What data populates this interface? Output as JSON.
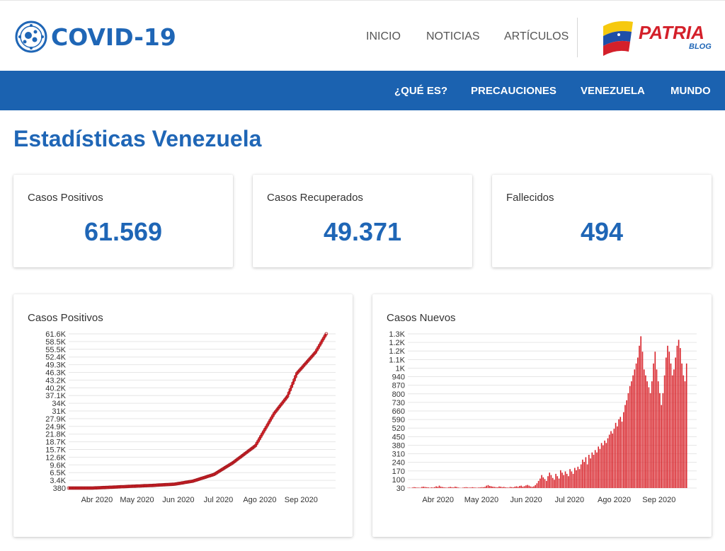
{
  "header": {
    "logo_text": "COVID-19",
    "nav": [
      "INICIO",
      "NOTICIAS",
      "ARTÍCULOS"
    ],
    "brand_word": "PATRIA",
    "brand_sub": "BLOG"
  },
  "subnav": [
    "¿QUÉ ES?",
    "PRECAUCIONES",
    "VENEZUELA",
    "MUNDO"
  ],
  "page": {
    "title": "Estadísticas Venezuela"
  },
  "stats": [
    {
      "label": "Casos Positivos",
      "value": "61.569"
    },
    {
      "label": "Casos Recuperados",
      "value": "49.371"
    },
    {
      "label": "Fallecidos",
      "value": "494"
    }
  ],
  "colors": {
    "primary": "#1f66b6",
    "bar": "#1b62b0",
    "series": "#d8232a"
  },
  "chart_data": [
    {
      "type": "line",
      "title": "Casos Positivos",
      "ytick_labels": [
        "380",
        "3.4K",
        "6.5K",
        "9.6K",
        "12.6K",
        "15.7K",
        "18.7K",
        "21.8K",
        "24.9K",
        "27.9K",
        "31K",
        "34K",
        "37.1K",
        "40.2K",
        "43.2K",
        "46.3K",
        "49.3K",
        "52.4K",
        "55.5K",
        "58.5K",
        "61.6K"
      ],
      "xtick_labels": [
        "Abr 2020",
        "May 2020",
        "Jun 2020",
        "Jul 2020",
        "Ago 2020",
        "Sep 2020"
      ],
      "ylim": [
        380,
        61600
      ],
      "x": [
        "2020-03-14",
        "2020-04-01",
        "2020-04-15",
        "2020-05-01",
        "2020-05-15",
        "2020-06-01",
        "2020-06-15",
        "2020-07-01",
        "2020-07-15",
        "2020-08-01",
        "2020-08-15",
        "2020-08-25",
        "2020-09-01",
        "2020-09-15",
        "2020-09-23"
      ],
      "y": [
        380,
        380,
        700,
        1100,
        1400,
        1900,
        3100,
        5800,
        10400,
        17200,
        30000,
        36800,
        45900,
        54300,
        61600
      ],
      "marker": true,
      "grid": true
    },
    {
      "type": "bar",
      "title": "Casos Nuevos",
      "ytick_labels": [
        "30",
        "100",
        "170",
        "240",
        "310",
        "380",
        "450",
        "520",
        "590",
        "660",
        "730",
        "800",
        "870",
        "940",
        "1K",
        "1.1K",
        "1.2K",
        "1.2K",
        "1.3K"
      ],
      "xtick_labels": [
        "Abr 2020",
        "May 2020",
        "Jun 2020",
        "Jul 2020",
        "Ago 2020",
        "Sep 2020"
      ],
      "ylim": [
        0,
        1300
      ],
      "x_range": [
        "2020-03-14",
        "2020-09-23"
      ],
      "values": [
        2,
        3,
        2,
        5,
        8,
        6,
        4,
        4,
        3,
        10,
        12,
        9,
        7,
        6,
        3,
        6,
        5,
        8,
        15,
        10,
        20,
        12,
        9,
        6,
        5,
        4,
        8,
        10,
        7,
        6,
        12,
        9,
        5,
        3,
        2,
        4,
        6,
        8,
        6,
        4,
        5,
        7,
        6,
        4,
        3,
        5,
        6,
        8,
        7,
        10,
        20,
        25,
        18,
        15,
        12,
        10,
        8,
        6,
        14,
        12,
        8,
        10,
        6,
        5,
        4,
        10,
        8,
        6,
        12,
        15,
        10,
        18,
        20,
        12,
        16,
        22,
        26,
        20,
        14,
        10,
        15,
        25,
        40,
        60,
        80,
        110,
        90,
        75,
        60,
        100,
        130,
        110,
        85,
        70,
        120,
        100,
        80,
        150,
        130,
        110,
        140,
        120,
        100,
        160,
        140,
        120,
        170,
        150,
        180,
        160,
        200,
        240,
        220,
        260,
        200,
        280,
        250,
        300,
        280,
        320,
        300,
        350,
        330,
        380,
        360,
        400,
        380,
        420,
        450,
        480,
        460,
        500,
        550,
        520,
        580,
        600,
        560,
        640,
        700,
        740,
        800,
        860,
        900,
        950,
        1000,
        1050,
        1100,
        1200,
        1280,
        1150,
        1000,
        950,
        900,
        850,
        800,
        900,
        1050,
        1150,
        1000,
        900,
        800,
        700,
        800,
        950,
        1100,
        1200,
        1150,
        1050,
        950,
        1000,
        1100,
        1200,
        1250,
        1180,
        1050,
        950,
        900,
        1050
      ]
    }
  ]
}
